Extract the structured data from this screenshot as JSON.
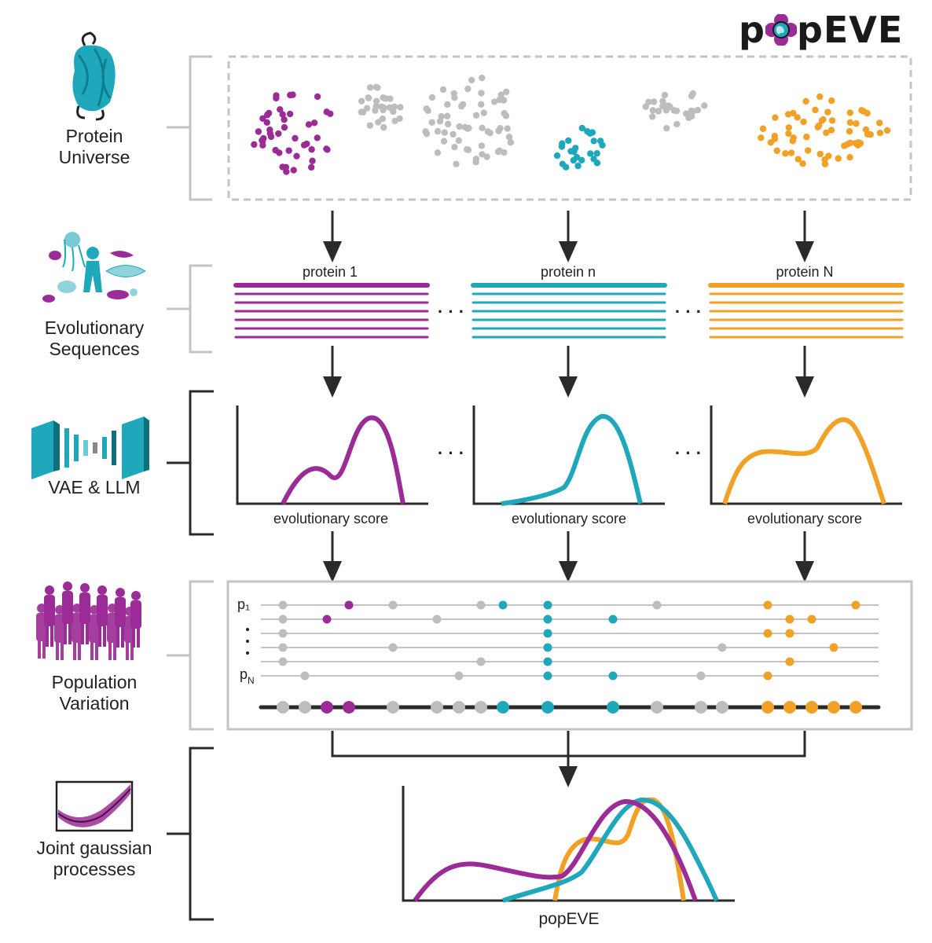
{
  "logo": {
    "text_left": "p",
    "text_right": "pEVE"
  },
  "stages": [
    {
      "line1": "Protein",
      "line2": "Universe"
    },
    {
      "line1": "Evolutionary",
      "line2": "Sequences"
    },
    {
      "line1": "VAE & LLM",
      "line2": ""
    },
    {
      "line1": "Population",
      "line2": "Variation"
    },
    {
      "line1": "Joint gaussian",
      "line2": "processes"
    }
  ],
  "proteins": [
    {
      "label": "protein 1",
      "color": "#9b2b96"
    },
    {
      "label": "protein n",
      "color": "#1fa7bb"
    },
    {
      "label": "protein N",
      "color": "#f0a126"
    }
  ],
  "ellipsis": "· · ·",
  "score_axis_label": "evolutionary score",
  "population": {
    "row_first": "p₁",
    "row_last_main": "p",
    "row_last_sub": "N"
  },
  "final_axis_label": "popEVE",
  "colors": {
    "purple": "#9b2b96",
    "teal": "#1fa7bb",
    "orange": "#f0a126",
    "gray": "#bdbdbd",
    "dark": "#2a2a2a"
  }
}
